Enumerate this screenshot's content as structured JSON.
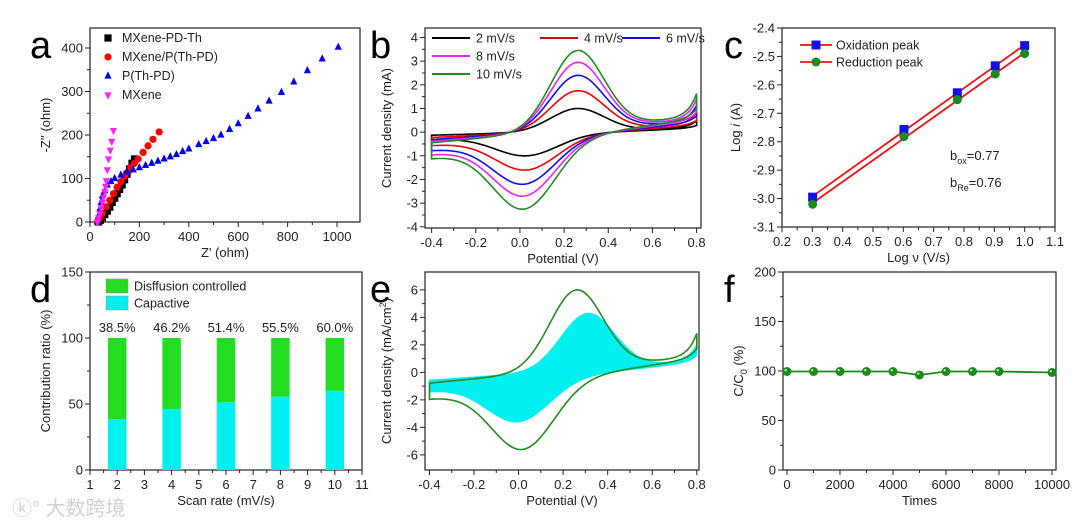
{
  "panel_letters": [
    "a",
    "b",
    "c",
    "d",
    "e",
    "f"
  ],
  "watermark": "大数跨境",
  "chart_data": [
    {
      "id": "a",
      "type": "scatter",
      "xlabel": "Z' (ohm)",
      "ylabel": "-Z'' (ohm)",
      "xlim": [
        0,
        1093
      ],
      "ylim": [
        0,
        446
      ],
      "xticks": [
        "0",
        "200",
        "400",
        "600",
        "800",
        "1000"
      ],
      "yticks": [
        "0",
        "100",
        "200",
        "300",
        "400"
      ],
      "legend_position": "top-left",
      "series": [
        {
          "name": "MXene-PD-Th",
          "color": "#000000",
          "marker": "square",
          "points": [
            [
              35,
              0
            ],
            [
              42,
              4
            ],
            [
              50,
              10
            ],
            [
              60,
              17
            ],
            [
              70,
              25
            ],
            [
              80,
              34
            ],
            [
              90,
              45
            ],
            [
              100,
              55
            ],
            [
              110,
              65
            ],
            [
              120,
              75
            ],
            [
              130,
              85
            ],
            [
              140,
              97
            ],
            [
              150,
              110
            ],
            [
              160,
              122
            ],
            [
              170,
              135
            ],
            [
              180,
              145
            ]
          ]
        },
        {
          "name": "MXene/P(Th-PD)",
          "color": "#ff0000",
          "marker": "circle",
          "points": [
            [
              30,
              0
            ],
            [
              40,
              10
            ],
            [
              50,
              20
            ],
            [
              65,
              35
            ],
            [
              80,
              50
            ],
            [
              95,
              65
            ],
            [
              110,
              80
            ],
            [
              125,
              93
            ],
            [
              140,
              105
            ],
            [
              155,
              116
            ],
            [
              165,
              125
            ],
            [
              180,
              135
            ],
            [
              195,
              145
            ],
            [
              215,
              160
            ],
            [
              235,
              175
            ],
            [
              255,
              190
            ],
            [
              280,
              207
            ]
          ]
        },
        {
          "name": "P(Th-PD)",
          "color": "#0000ee",
          "marker": "triangle-up",
          "points": [
            [
              30,
              0
            ],
            [
              35,
              15
            ],
            [
              40,
              30
            ],
            [
              45,
              45
            ],
            [
              50,
              60
            ],
            [
              60,
              72
            ],
            [
              70,
              85
            ],
            [
              85,
              93
            ],
            [
              100,
              100
            ],
            [
              125,
              108
            ],
            [
              150,
              115
            ],
            [
              175,
              120
            ],
            [
              200,
              125
            ],
            [
              225,
              130
            ],
            [
              250,
              135
            ],
            [
              275,
              140
            ],
            [
              300,
              145
            ],
            [
              325,
              150
            ],
            [
              350,
              155
            ],
            [
              375,
              162
            ],
            [
              400,
              168
            ],
            [
              440,
              178
            ],
            [
              470,
              185
            ],
            [
              500,
              192
            ],
            [
              530,
              200
            ],
            [
              565,
              213
            ],
            [
              600,
              226
            ],
            [
              640,
              243
            ],
            [
              680,
              260
            ],
            [
              725,
              278
            ],
            [
              775,
              298
            ],
            [
              825,
              322
            ],
            [
              880,
              348
            ],
            [
              940,
              375
            ],
            [
              1005,
              402
            ]
          ]
        },
        {
          "name": "MXene",
          "color": "#ff22ff",
          "marker": "triangle-down",
          "points": [
            [
              30,
              0
            ],
            [
              35,
              10
            ],
            [
              40,
              20
            ],
            [
              45,
              32
            ],
            [
              50,
              45
            ],
            [
              55,
              57
            ],
            [
              60,
              70
            ],
            [
              63,
              82
            ],
            [
              66,
              95
            ],
            [
              70,
              120
            ],
            [
              75,
              145
            ],
            [
              82,
              165
            ],
            [
              88,
              185
            ],
            [
              95,
              210
            ]
          ]
        }
      ]
    },
    {
      "id": "b",
      "type": "line",
      "xlabel": "Potential (V)",
      "ylabel": "Current density (mA)",
      "xlim": [
        -0.43,
        0.82
      ],
      "ylim": [
        -4.05,
        4.4
      ],
      "xticks": [
        "-0.4",
        "-0.2",
        "0.0",
        "0.2",
        "0.4",
        "0.6",
        "0.8"
      ],
      "yticks": [
        "-4",
        "-3",
        "-2",
        "-1",
        "0",
        "1",
        "2",
        "3",
        "4"
      ],
      "legend_position": "top-left",
      "series": [
        {
          "name": "2 mV/s",
          "color": "#000000",
          "anodic_peak": [
            0.26,
            1.0
          ],
          "cathodic_peak": [
            0.03,
            -1.0
          ]
        },
        {
          "name": "4 mV/s",
          "color": "#ee0000",
          "anodic_peak": [
            0.26,
            1.75
          ],
          "cathodic_peak": [
            0.03,
            -1.6
          ]
        },
        {
          "name": "6 mV/s",
          "color": "#1010ee",
          "anodic_peak": [
            0.26,
            2.4
          ],
          "cathodic_peak": [
            0.02,
            -2.2
          ]
        },
        {
          "name": "8 mV/s",
          "color": "#ee22ee",
          "anodic_peak": [
            0.26,
            2.95
          ],
          "cathodic_peak": [
            0.02,
            -2.7
          ]
        },
        {
          "name": "10 mV/s",
          "color": "#228b22",
          "anodic_peak": [
            0.26,
            3.45
          ],
          "cathodic_peak": [
            0.02,
            -3.25
          ]
        }
      ]
    },
    {
      "id": "c",
      "type": "scatter",
      "xlabel": "Log ν (V/s)",
      "ylabel_prefix": "Log ",
      "ylabel_italic": "i",
      "ylabel_suffix": " (A)",
      "xlim": [
        0.2,
        1.1
      ],
      "ylim": [
        -3.1,
        -2.4
      ],
      "xticks": [
        "0.2",
        "0.3",
        "0.4",
        "0.5",
        "0.6",
        "0.7",
        "0.8",
        "0.9",
        "1.0",
        "1.1"
      ],
      "yticks": [
        "-3.1",
        "-3.0",
        "-2.9",
        "-2.8",
        "-2.7",
        "-2.6",
        "-2.5",
        "-2.4"
      ],
      "legend_position": "top-left",
      "fit_color": "#ee1111",
      "series": [
        {
          "name": "Oxidation peak",
          "color": "#1010ee",
          "marker": "square",
          "points": [
            [
              0.301,
              -2.995
            ],
            [
              0.602,
              -2.757
            ],
            [
              0.778,
              -2.628
            ],
            [
              0.903,
              -2.533
            ],
            [
              1.0,
              -2.462
            ]
          ]
        },
        {
          "name": "Reduction peak",
          "color": "#1a8a1a",
          "marker": "circle",
          "points": [
            [
              0.301,
              -3.02
            ],
            [
              0.602,
              -2.782
            ],
            [
              0.778,
              -2.652
            ],
            [
              0.903,
              -2.562
            ],
            [
              1.0,
              -2.49
            ]
          ]
        }
      ],
      "annotations": [
        {
          "main": "b",
          "sub": "ox",
          "text": "=0.77"
        },
        {
          "main": "b",
          "sub": "Re",
          "text": "=0.76"
        }
      ]
    },
    {
      "id": "d",
      "type": "bar",
      "xlabel": "Scan rate (mV/s)",
      "ylabel": "Contribution ratio (%)",
      "xlim": [
        1,
        11
      ],
      "ylim": [
        0,
        150
      ],
      "xticks": [
        "1",
        "2",
        "3",
        "4",
        "5",
        "6",
        "7",
        "8",
        "9",
        "10",
        "11"
      ],
      "yticks": [
        "0",
        "50",
        "100",
        "150"
      ],
      "categories": [
        2,
        4,
        6,
        8,
        10
      ],
      "series": [
        {
          "name": "Disffusion controlled",
          "color": "#22dd22",
          "values": [
            61.5,
            53.8,
            48.6,
            44.5,
            40.0
          ]
        },
        {
          "name": "Capactive",
          "color": "#00f0f0",
          "values": [
            38.5,
            46.2,
            51.4,
            55.5,
            60.0
          ]
        }
      ],
      "data_labels": [
        "38.5%",
        "46.2%",
        "51.4%",
        "55.5%",
        "60.0%"
      ],
      "legend_position": "top-left"
    },
    {
      "id": "e",
      "type": "area",
      "xlabel": "Potential (V)",
      "ylabel": "Current density (mA/cm",
      "ylabel_sup": "2",
      "ylabel_end": ")",
      "xlim": [
        -0.42,
        0.81
      ],
      "ylim": [
        -7.1,
        7.3
      ],
      "xticks": [
        "-0.4",
        "-0.2",
        "0.0",
        "0.2",
        "0.4",
        "0.6",
        "0.8"
      ],
      "yticks": [
        "-6",
        "-4",
        "-2",
        "0",
        "2",
        "4",
        "6"
      ],
      "series": [
        {
          "name": "total",
          "color": "#228b22",
          "anodic_peak": [
            0.26,
            6.0
          ],
          "cathodic_peak": [
            0.02,
            -5.6
          ]
        },
        {
          "name": "capacitive",
          "color": "#00f0f0",
          "anodic_peak": [
            0.31,
            4.3
          ],
          "cathodic_peak": [
            0.0,
            -3.6
          ]
        }
      ]
    },
    {
      "id": "f",
      "type": "line",
      "xlabel": "Times",
      "ylabel_main": "C/C",
      "ylabel_sub": "0",
      "ylabel_end": " (%)",
      "xlim": [
        -150,
        10150
      ],
      "ylim": [
        0,
        200
      ],
      "xticks": [
        "0",
        "2000",
        "4000",
        "6000",
        "8000",
        "10000"
      ],
      "yticks": [
        "0",
        "50",
        "100",
        "150",
        "200"
      ],
      "series": [
        {
          "name": "retention",
          "color": "#1a8a1a",
          "points": [
            [
              0,
              99.5
            ],
            [
              1000,
              99.5
            ],
            [
              2000,
              99.5
            ],
            [
              3000,
              99.5
            ],
            [
              4000,
              99.5
            ],
            [
              5000,
              96
            ],
            [
              6000,
              99.5
            ],
            [
              7000,
              99.5
            ],
            [
              8000,
              99.5
            ],
            [
              10000,
              98.5
            ]
          ]
        }
      ]
    }
  ]
}
